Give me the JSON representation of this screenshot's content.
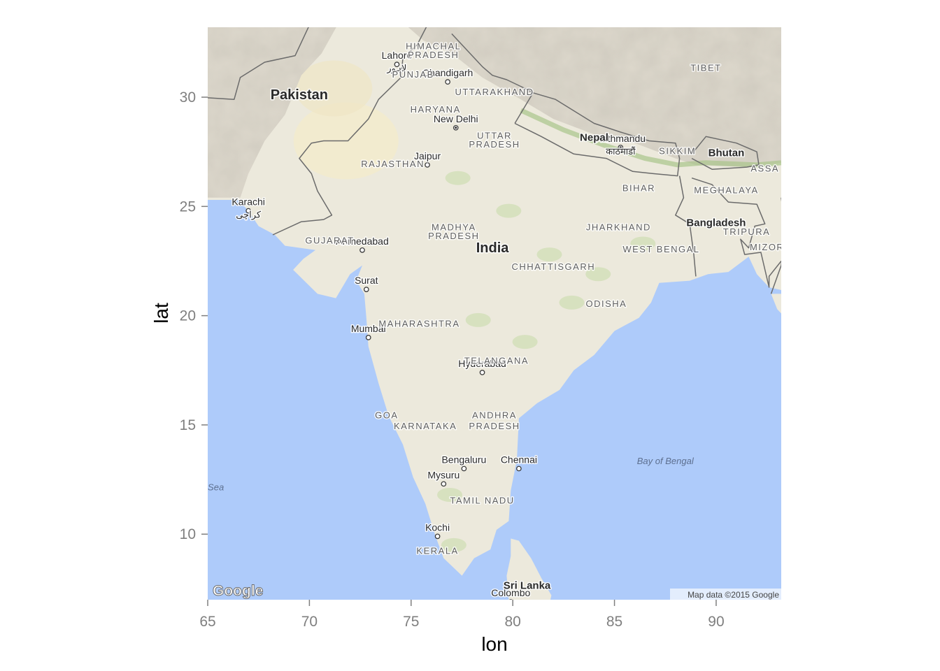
{
  "axes": {
    "xlabel": "lon",
    "ylabel": "lat",
    "xlim": [
      65,
      93.2
    ],
    "ylim": [
      7,
      33.2
    ],
    "x_ticks": [
      65,
      70,
      75,
      80,
      85,
      90
    ],
    "y_ticks": [
      10,
      15,
      20,
      25,
      30
    ],
    "tick_color": "#7f7f7f"
  },
  "map": {
    "land_color": "#ece9dc",
    "water_color": "#aecbfa",
    "mountain_color": "#ddd8cc",
    "border_color": "#6b6b6b",
    "cities": [
      {
        "name": "Lahore",
        "native": "لاہور",
        "lon": 74.3,
        "lat": 31.5,
        "dot": true
      },
      {
        "name": "Chandigarh",
        "lon": 76.8,
        "lat": 30.7,
        "dot": true
      },
      {
        "name": "New Delhi",
        "lon": 77.2,
        "lat": 28.6,
        "dot": true,
        "capital": true
      },
      {
        "name": "Jaipur",
        "lon": 75.8,
        "lat": 26.9,
        "dot": true
      },
      {
        "name": "Kathmandu",
        "native": "काठमाडौं",
        "lon": 85.3,
        "lat": 27.7,
        "dot": true,
        "capital": true
      },
      {
        "name": "Karachi",
        "native": "کراچی",
        "lon": 67.0,
        "lat": 24.8,
        "dot": true
      },
      {
        "name": "Ahmedabad",
        "lon": 72.6,
        "lat": 23.0,
        "dot": true
      },
      {
        "name": "Surat",
        "lon": 72.8,
        "lat": 21.2,
        "dot": true
      },
      {
        "name": "Mumbai",
        "lon": 72.9,
        "lat": 19.0,
        "dot": true
      },
      {
        "name": "Hyderabad",
        "lon": 78.5,
        "lat": 17.4,
        "dot": true
      },
      {
        "name": "Bengaluru",
        "lon": 77.6,
        "lat": 13.0,
        "dot": true
      },
      {
        "name": "Chennai",
        "lon": 80.3,
        "lat": 13.0,
        "dot": true
      },
      {
        "name": "Mysuru",
        "lon": 76.6,
        "lat": 12.3,
        "dot": true
      },
      {
        "name": "Kochi",
        "lon": 76.3,
        "lat": 9.9,
        "dot": true
      },
      {
        "name": "Colombo",
        "lon": 79.9,
        "lat": 6.9,
        "dot": true
      }
    ],
    "regions": [
      {
        "name": "HIMACHAL",
        "lon": 76.1,
        "lat": 32.2
      },
      {
        "name": "PRADESH",
        "lon": 76.1,
        "lat": 31.8
      },
      {
        "name": "PUNJAB",
        "lon": 75.1,
        "lat": 30.9
      },
      {
        "name": "UTTARAKHAND",
        "lon": 79.1,
        "lat": 30.1
      },
      {
        "name": "HARYANA",
        "lon": 76.2,
        "lat": 29.3
      },
      {
        "name": "UTTAR",
        "lon": 79.1,
        "lat": 28.1
      },
      {
        "name": "PRADESH",
        "lon": 79.1,
        "lat": 27.7
      },
      {
        "name": "RAJASTHAN",
        "lon": 74.1,
        "lat": 26.8
      },
      {
        "name": "SIKKIM",
        "lon": 88.1,
        "lat": 27.4
      },
      {
        "name": "ASSA",
        "lon": 92.4,
        "lat": 26.6
      },
      {
        "name": "BIHAR",
        "lon": 86.2,
        "lat": 25.7
      },
      {
        "name": "MEGHALAYA",
        "lon": 90.5,
        "lat": 25.6
      },
      {
        "name": "MADHYA",
        "lon": 77.1,
        "lat": 23.9
      },
      {
        "name": "PRADESH",
        "lon": 77.1,
        "lat": 23.5
      },
      {
        "name": "JHARKHAND",
        "lon": 85.2,
        "lat": 23.9
      },
      {
        "name": "TRIPURA",
        "lon": 91.5,
        "lat": 23.7
      },
      {
        "name": "GUJARAT",
        "lon": 71.0,
        "lat": 23.3
      },
      {
        "name": "WEST BENGAL",
        "lon": 87.3,
        "lat": 22.9
      },
      {
        "name": "MIZOR",
        "lon": 92.5,
        "lat": 23.0
      },
      {
        "name": "CHHATTISGARH",
        "lon": 82.0,
        "lat": 22.1
      },
      {
        "name": "ODISHA",
        "lon": 84.6,
        "lat": 20.4
      },
      {
        "name": "MAHARASHTRA",
        "lon": 75.4,
        "lat": 19.5
      },
      {
        "name": "TELANGANA",
        "lon": 79.2,
        "lat": 17.8
      },
      {
        "name": "GOA",
        "lon": 73.8,
        "lat": 15.3
      },
      {
        "name": "KARNATAKA",
        "lon": 75.7,
        "lat": 14.8
      },
      {
        "name": "ANDHRA",
        "lon": 79.1,
        "lat": 15.3
      },
      {
        "name": "PRADESH",
        "lon": 79.1,
        "lat": 14.8
      },
      {
        "name": "TAMIL NADU",
        "lon": 78.5,
        "lat": 11.4
      },
      {
        "name": "KERALA",
        "lon": 76.3,
        "lat": 9.1
      }
    ],
    "countries": [
      {
        "name": "Pakistan",
        "lon": 69.5,
        "lat": 29.9
      },
      {
        "name": "Nepal",
        "lon": 84.0,
        "lat": 28.0
      },
      {
        "name": "Bhutan",
        "lon": 90.5,
        "lat": 27.3
      },
      {
        "name": "TIBET",
        "lon": 89.5,
        "lat": 31.2,
        "style": "region"
      },
      {
        "name": "India",
        "lon": 79.0,
        "lat": 22.9
      },
      {
        "name": "Bangladesh",
        "lon": 90.0,
        "lat": 24.1
      },
      {
        "name": "Sri Lanka",
        "lon": 80.7,
        "lat": 7.5
      }
    ],
    "water_bodies": [
      {
        "name": "Bay of Bengal",
        "lon": 87.5,
        "lat": 13.2
      },
      {
        "name": "Sea",
        "lon": 65.4,
        "lat": 12.0
      }
    ],
    "logo_text": "Google",
    "attribution": "Map data ©2015 Google"
  }
}
